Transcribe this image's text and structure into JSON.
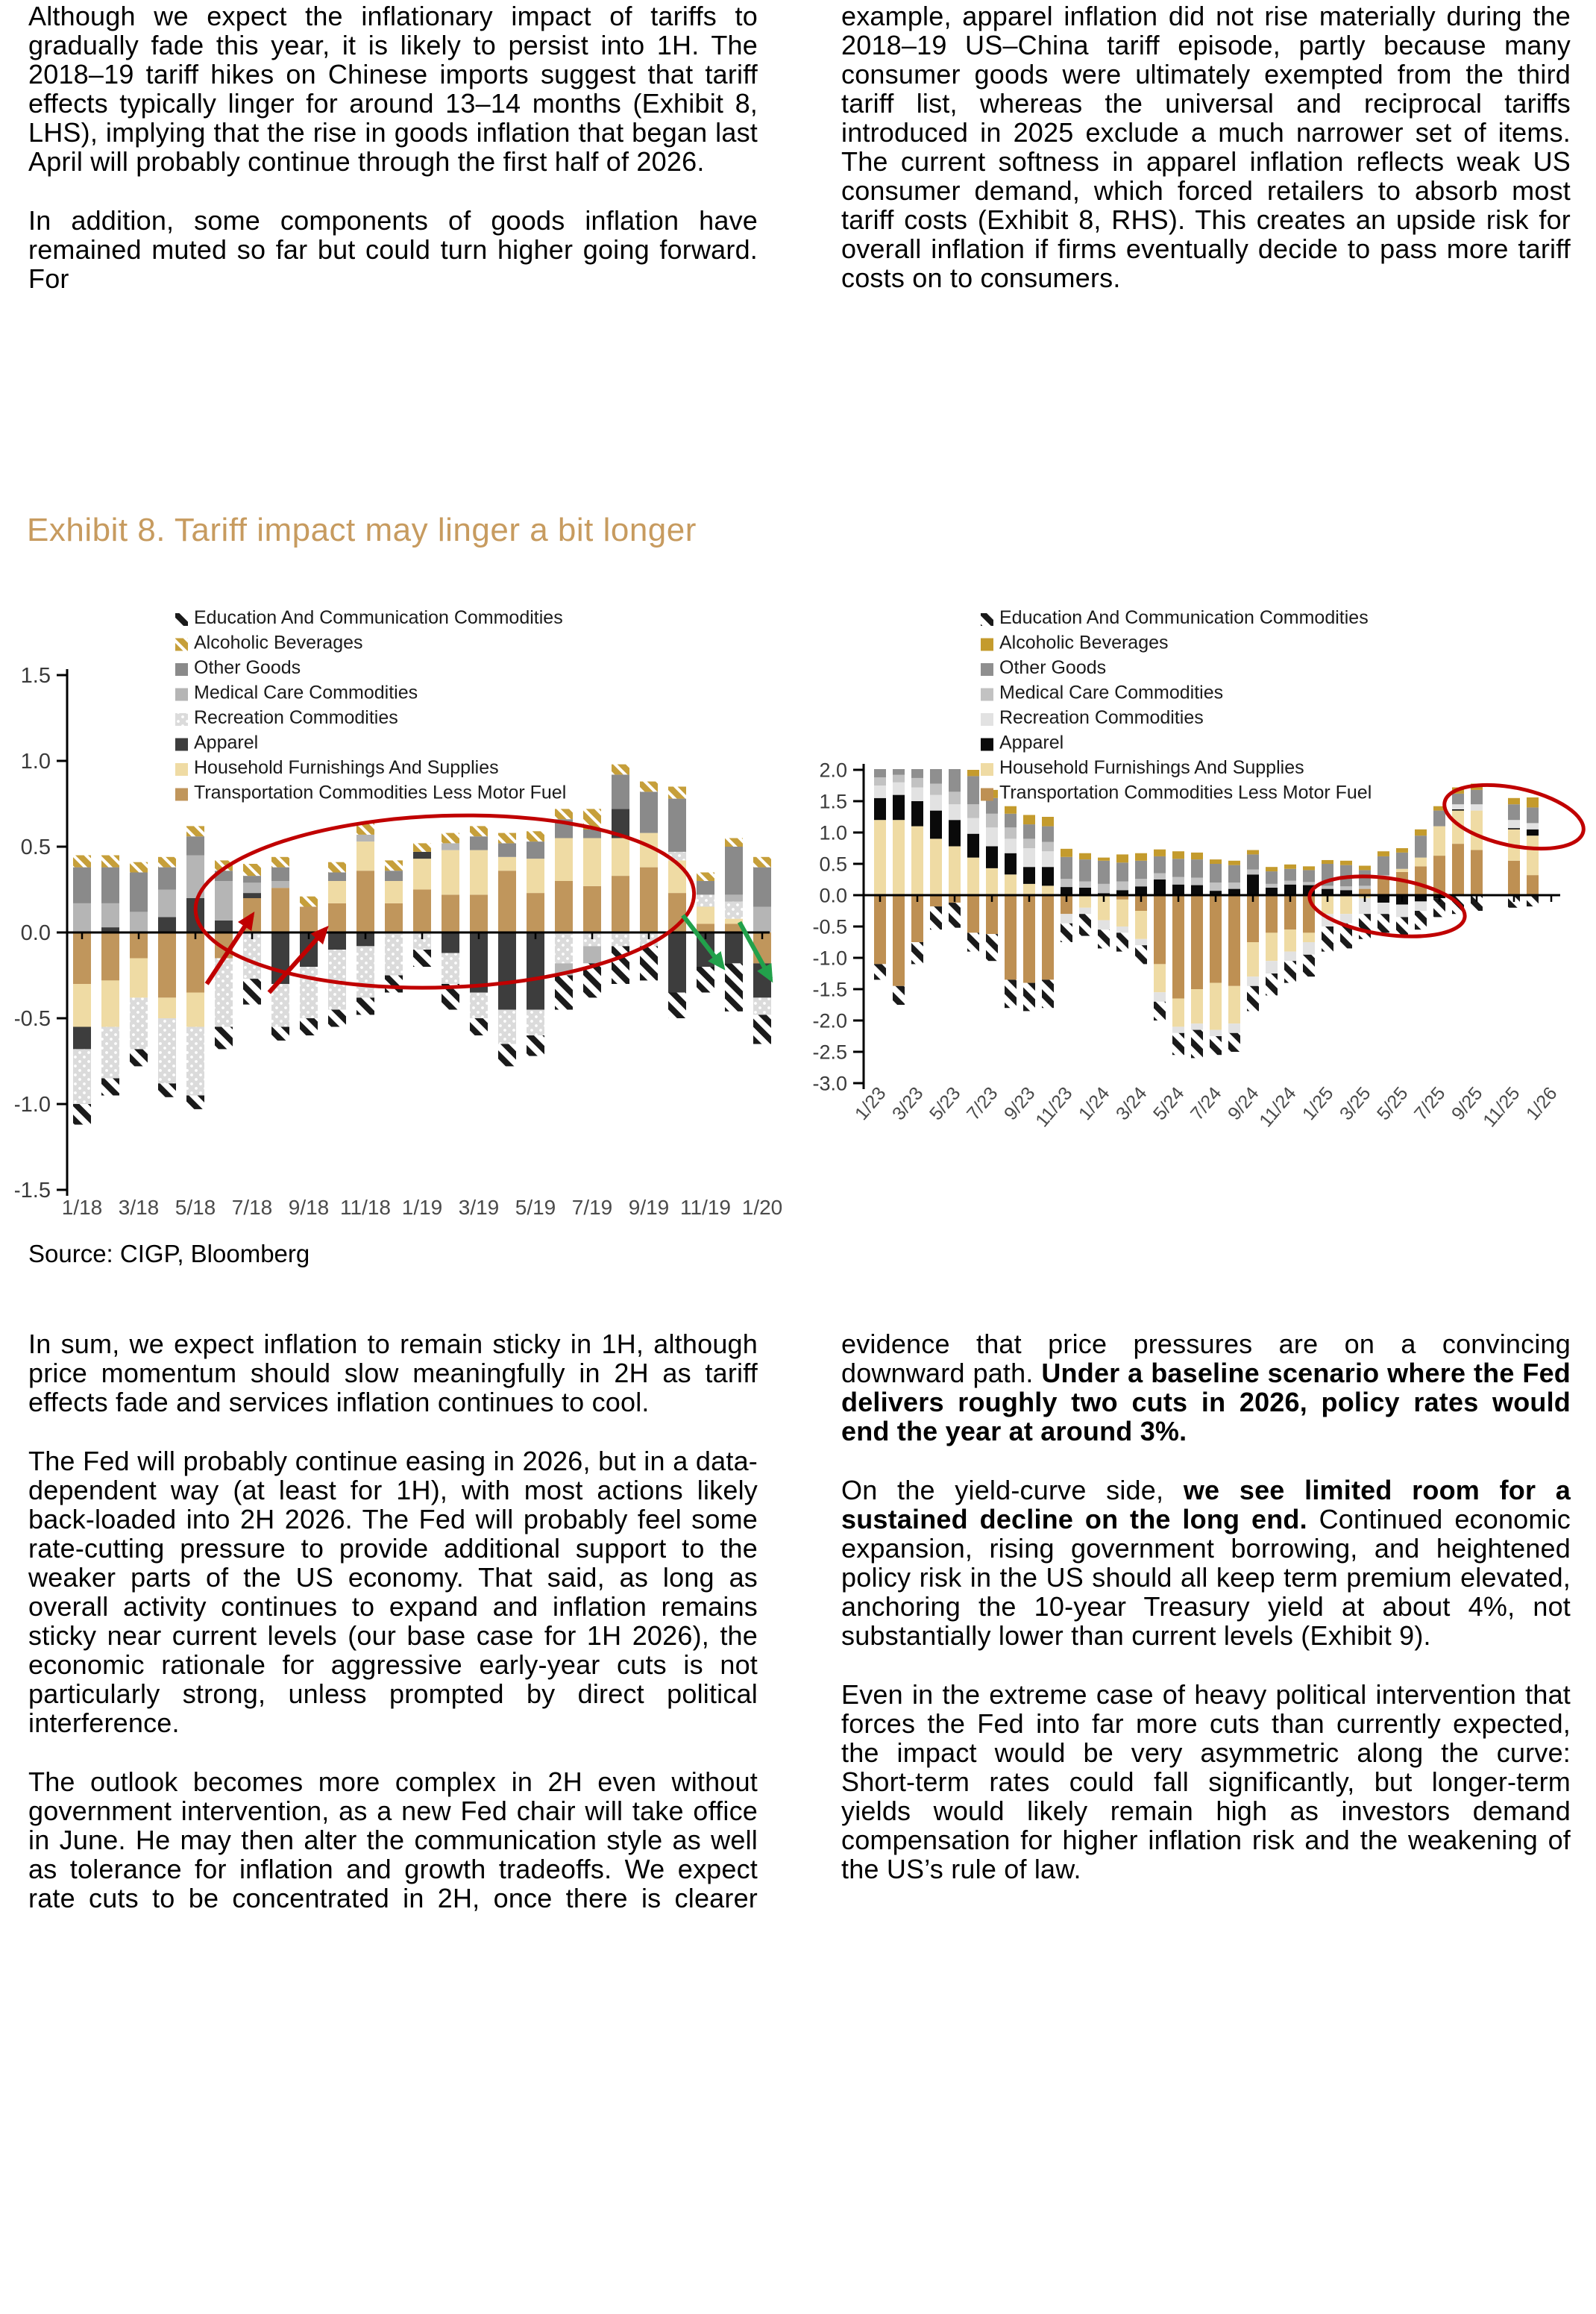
{
  "page": {
    "background": "#FFFFFF",
    "text_color": "#000000",
    "accent_gold": "#C79B5F",
    "annotation_red": "#C00000",
    "annotation_green": "#22A14B"
  },
  "exhibit": {
    "title": "Exhibit 8. Tariff impact may linger a bit longer",
    "source": "Source: CIGP, Bloomberg"
  },
  "columns_top": {
    "left": [
      {
        "cont": false,
        "runs": [
          {
            "t": "Although we expect the inflationary impact of tariffs to gradually fade this year, it is likely to persist into 1H. The 2018–19 tariff hikes on Chinese imports suggest that tariff effects typically linger for around 13–14 months (Exhibit 8, LHS), implying that the rise in goods inflation that began last April will probably continue through the first half of 2026.",
            "b": false
          }
        ]
      },
      {
        "cont": true,
        "runs": [
          {
            "t": "In addition, some components of goods inflation have remained muted so far but could turn higher going forward. For",
            "b": false
          }
        ]
      }
    ],
    "right": [
      {
        "cont": false,
        "runs": [
          {
            "t": "example, apparel inflation did not rise materially during the 2018–19 US–China tariff episode, partly because many consumer goods were ultimately exempted from the third tariff list, whereas the universal and reciprocal tariffs introduced in 2025 exclude a much narrower set of items. The current softness in apparel inflation reflects weak US consumer demand, which forced retailers to absorb most tariff costs (Exhibit 8, RHS). This creates an upside risk for overall inflation if firms eventually decide to pass more tariff costs on to consumers.",
            "b": false
          }
        ]
      }
    ]
  },
  "columns_bottom": {
    "left": [
      {
        "cont": false,
        "runs": [
          {
            "t": "In sum, we expect inflation to remain sticky in 1H, although price momentum should slow meaningfully in 2H as tariff effects fade and services inflation continues to cool.",
            "b": false
          }
        ]
      },
      {
        "cont": false,
        "runs": [
          {
            "t": "The Fed will probably continue easing in 2026, but in a data-dependent way (at least for 1H), with most actions likely back-loaded into 2H 2026. The Fed will probably feel some rate-cutting pressure to provide additional support to the weaker parts of the US economy. That said, as long as overall activity continues to expand and inflation remains sticky near current levels (our base case for 1H 2026), the economic rationale for aggressive early-year cuts is not particularly strong, unless prompted by direct political interference.",
            "b": false
          }
        ]
      },
      {
        "cont": true,
        "runs": [
          {
            "t": "The outlook becomes more complex in 2H even without government intervention, as a new Fed chair will take office in June. He may then alter the communication style as well as tolerance for inflation and growth tradeoffs. We expect rate cuts to be concentrated in 2H, once there is clearer",
            "b": false
          }
        ]
      }
    ],
    "right": [
      {
        "cont": false,
        "runs": [
          {
            "t": "evidence that price pressures are on a convincing downward path. ",
            "b": false
          },
          {
            "t": "Under a baseline scenario where the Fed delivers roughly two cuts in 2026, policy rates would end the year at around 3%.",
            "b": true
          }
        ]
      },
      {
        "cont": false,
        "runs": [
          {
            "t": "On the yield-curve side, ",
            "b": false
          },
          {
            "t": "we see limited room for a sustained decline on the long end.",
            "b": true
          },
          {
            "t": " Continued economic expansion, rising government borrowing, and heightened policy risk in the US should all keep term premium elevated, anchoring the 10-year Treasury yield at about 4%, not substantially lower than current levels (Exhibit 9).",
            "b": false
          }
        ]
      },
      {
        "cont": false,
        "runs": [
          {
            "t": "Even in the extreme case of heavy political intervention that forces the Fed into far more cuts than currently expected, the impact would be very asymmetric along the curve: Short-term rates could fall significantly, but longer-term yields would likely remain high as investors demand compensation for higher inflation risk and the weakening of the US’s rule of law.",
            "b": false
          }
        ]
      }
    ]
  },
  "chart_data": [
    {
      "type": "bar",
      "stacked": true,
      "position": "LHS",
      "title": "",
      "xlabel": "",
      "ylabel": "",
      "ylim": [
        -1.5,
        1.5
      ],
      "x_tick_step": 2,
      "legend_position": "top-inside",
      "yticks": [
        "1.5",
        "1.0",
        "0.5",
        "0.0",
        "-0.5",
        "-1.0",
        "-1.5"
      ],
      "categories": [
        "1/18",
        "2/18",
        "3/18",
        "4/18",
        "5/18",
        "6/18",
        "7/18",
        "8/18",
        "9/18",
        "10/18",
        "11/18",
        "12/18",
        "1/19",
        "2/19",
        "3/19",
        "4/19",
        "5/19",
        "6/19",
        "7/19",
        "8/19",
        "9/19",
        "10/19",
        "11/19",
        "12/19",
        "1/20"
      ],
      "series": [
        {
          "name": "Transportation Commodities Less Motor Fuel",
          "color": "#C0965C",
          "pattern": "solid"
        },
        {
          "name": "Household Furnishings And Supplies",
          "color": "#EFDBA4",
          "pattern": "solid"
        },
        {
          "name": "Apparel",
          "color": "#3D3D3D",
          "pattern": "solid"
        },
        {
          "name": "Recreation Commodities",
          "color": "#DBDBDB",
          "pattern": "dots"
        },
        {
          "name": "Medical Care Commodities",
          "color": "#B5B5B5",
          "pattern": "solid"
        },
        {
          "name": "Other Goods",
          "color": "#8A8A8A",
          "pattern": "solid"
        },
        {
          "name": "Alcoholic Beverages",
          "color": "#C69F3A",
          "pattern": "gold-hatch"
        },
        {
          "name": "Education And Communication Commodities",
          "color": "#1A1A1A",
          "pattern": "hatch"
        }
      ],
      "legend_order": [
        7,
        6,
        5,
        4,
        3,
        2,
        1,
        0
      ],
      "values": [
        [
          -0.3,
          -0.25,
          -0.13,
          -0.32,
          0.17,
          0.21,
          0.07,
          -0.12
        ],
        [
          -0.28,
          -0.27,
          0.03,
          -0.3,
          0.14,
          0.21,
          0.07,
          -0.1
        ],
        [
          -0.15,
          -0.23,
          0,
          -0.3,
          0.12,
          0.23,
          0.06,
          -0.1
        ],
        [
          -0.38,
          -0.12,
          0.09,
          -0.38,
          0.16,
          0.13,
          0.06,
          -0.08
        ],
        [
          -0.35,
          -0.2,
          0.2,
          -0.4,
          0.25,
          0.11,
          0.06,
          -0.08
        ],
        [
          -0.15,
          0,
          0.07,
          -0.4,
          0.23,
          0.06,
          0.06,
          -0.13
        ],
        [
          0.2,
          0,
          0.03,
          -0.27,
          0.06,
          0.04,
          0.07,
          -0.15
        ],
        [
          0.26,
          0,
          -0.3,
          -0.25,
          0.04,
          0.08,
          0.06,
          -0.08
        ],
        [
          0.15,
          0,
          -0.2,
          -0.3,
          0,
          0,
          0.06,
          -0.1
        ],
        [
          0.17,
          0.13,
          -0.1,
          -0.35,
          0,
          0.05,
          0.06,
          -0.1
        ],
        [
          0.36,
          0.17,
          -0.08,
          -0.3,
          0.04,
          0,
          0.07,
          -0.1
        ],
        [
          0.17,
          0.13,
          0,
          -0.25,
          0,
          0.06,
          0.06,
          -0.1
        ],
        [
          0.25,
          0.18,
          0.04,
          -0.1,
          0,
          0,
          0.05,
          -0.1
        ],
        [
          0.22,
          0.26,
          -0.12,
          -0.18,
          0.04,
          0,
          0.06,
          -0.15
        ],
        [
          0.22,
          0.26,
          -0.35,
          -0.15,
          0,
          0.08,
          0.06,
          -0.1
        ],
        [
          0.36,
          0.08,
          -0.45,
          -0.2,
          0,
          0.08,
          0.06,
          -0.13
        ],
        [
          0.23,
          0.2,
          -0.45,
          -0.15,
          0,
          0.1,
          0.06,
          -0.12
        ],
        [
          0.3,
          0.25,
          0,
          -0.18,
          -0.07,
          0.11,
          0.06,
          -0.2
        ],
        [
          0.27,
          0.28,
          0,
          -0.08,
          -0.1,
          0.05,
          0.12,
          -0.2
        ],
        [
          0.33,
          0.22,
          0.17,
          -0.08,
          0,
          0.2,
          0.06,
          -0.22
        ],
        [
          0.38,
          0.2,
          0,
          -0.08,
          0,
          0.24,
          0.06,
          -0.2
        ],
        [
          0.23,
          0.19,
          -0.35,
          0.05,
          0,
          0.31,
          0.07,
          -0.15
        ],
        [
          0.05,
          0.1,
          -0.2,
          0.07,
          0,
          0.08,
          0.05,
          -0.15
        ],
        [
          0.05,
          0.03,
          -0.18,
          0.1,
          0.04,
          0.28,
          0.05,
          -0.28
        ],
        [
          -0.18,
          0,
          -0.2,
          -0.1,
          0.15,
          0.23,
          0.06,
          -0.17
        ]
      ],
      "annotation_color": "#C00000",
      "annotations": {
        "ellipses": [
          {
            "cx": 12.8,
            "cy": 0.18,
            "rx": 8.8,
            "ry": 0.5,
            "rot": -2,
            "color": "#C00000"
          }
        ],
        "arrows": [
          {
            "x1": 4.4,
            "y1": -0.3,
            "x2": 6.0,
            "y2": 0.1,
            "color": "#C00000"
          },
          {
            "x1": 6.6,
            "y1": -0.35,
            "x2": 8.6,
            "y2": 0.02,
            "color": "#C00000"
          },
          {
            "x1": 21.2,
            "y1": 0.1,
            "x2": 22.6,
            "y2": -0.2,
            "color": "#22A14B"
          },
          {
            "x1": 23.2,
            "y1": 0.06,
            "x2": 24.3,
            "y2": -0.27,
            "color": "#22A14B"
          }
        ]
      }
    },
    {
      "type": "bar",
      "stacked": true,
      "position": "RHS",
      "title": "",
      "xlabel": "",
      "ylabel": "",
      "ylim": [
        -3.0,
        2.0
      ],
      "x_tick_step": 2,
      "legend_position": "top-inside",
      "yticks": [
        "2.0",
        "1.5",
        "1.0",
        "0.5",
        "0.0",
        "-0.5",
        "-1.0",
        "-1.5",
        "-2.0",
        "-2.5",
        "-3.0"
      ],
      "categories": [
        "1/23",
        "2/23",
        "3/23",
        "4/23",
        "5/23",
        "6/23",
        "7/23",
        "8/23",
        "9/23",
        "10/23",
        "11/23",
        "12/23",
        "1/24",
        "2/24",
        "3/24",
        "4/24",
        "5/24",
        "6/24",
        "7/24",
        "8/24",
        "9/24",
        "10/24",
        "11/24",
        "12/24",
        "1/25",
        "2/25",
        "3/25",
        "4/25",
        "5/25",
        "6/25",
        "7/25",
        "8/25",
        "9/25",
        "10/25",
        "11/25",
        "12/25",
        "1/26"
      ],
      "series": [
        {
          "name": "Transportation Commodities Less Motor Fuel",
          "color": "#BE9053",
          "pattern": "solid"
        },
        {
          "name": "Household Furnishings And Supplies",
          "color": "#EFDBA4",
          "pattern": "solid"
        },
        {
          "name": "Apparel",
          "color": "#0A0A0A",
          "pattern": "solid"
        },
        {
          "name": "Recreation Commodities",
          "color": "#E2E2E2",
          "pattern": "solid"
        },
        {
          "name": "Medical Care Commodities",
          "color": "#C2C2C2",
          "pattern": "solid"
        },
        {
          "name": "Other Goods",
          "color": "#8F8F8F",
          "pattern": "solid"
        },
        {
          "name": "Alcoholic Beverages",
          "color": "#C49B2D",
          "pattern": "solid"
        },
        {
          "name": "Education And Communication Commodities",
          "color": "#1A1A1A",
          "pattern": "hatch"
        }
      ],
      "legend_order": [
        7,
        6,
        5,
        4,
        3,
        2,
        1,
        0
      ],
      "values": [
        [
          -1.1,
          1.2,
          0.35,
          0.2,
          0.13,
          0.25,
          0,
          -0.25
        ],
        [
          -1.45,
          1.2,
          0.4,
          0.2,
          0.12,
          0.18,
          0,
          -0.3
        ],
        [
          -0.75,
          1.1,
          0.4,
          0.22,
          0.15,
          0.23,
          0,
          -0.35
        ],
        [
          -0.18,
          0.9,
          0.45,
          0.25,
          0.18,
          0.32,
          0,
          -0.37
        ],
        [
          -0.12,
          0.78,
          0.42,
          0.25,
          0.2,
          0.4,
          0,
          -0.4
        ],
        [
          -0.6,
          0.6,
          0.38,
          0.25,
          0.22,
          0.45,
          0.1,
          -0.3
        ],
        [
          -0.62,
          0.43,
          0.35,
          0.3,
          0.22,
          0.25,
          0.13,
          -0.43
        ],
        [
          -1.35,
          0.33,
          0.34,
          0.23,
          0.18,
          0.22,
          0.12,
          -0.45
        ],
        [
          -1.4,
          0.18,
          0.27,
          0.3,
          0.15,
          0.23,
          0.15,
          -0.45
        ],
        [
          -1.35,
          0.15,
          0.3,
          0.25,
          0.15,
          0.25,
          0.15,
          -0.45
        ],
        [
          -0.3,
          0,
          0.13,
          -0.15,
          0.13,
          0.35,
          0.13,
          -0.3
        ],
        [
          0,
          -0.2,
          0.12,
          -0.1,
          0.1,
          0.35,
          0.1,
          -0.35
        ],
        [
          0,
          -0.4,
          0.03,
          -0.15,
          0.15,
          0.37,
          0.05,
          -0.3
        ],
        [
          -0.07,
          -0.43,
          0.08,
          -0.1,
          0.14,
          0.3,
          0.13,
          -0.3
        ],
        [
          -0.25,
          -0.45,
          0.14,
          -0.1,
          0.12,
          0.29,
          0.12,
          -0.3
        ],
        [
          -1.1,
          -0.45,
          0.25,
          -0.15,
          0.1,
          0.27,
          0.11,
          -0.3
        ],
        [
          -1.65,
          -0.45,
          0.17,
          -0.1,
          0.12,
          0.29,
          0.12,
          -0.35
        ],
        [
          -1.5,
          -0.55,
          0.16,
          -0.1,
          0.12,
          0.29,
          0.11,
          -0.45
        ],
        [
          -1.4,
          -0.75,
          0.07,
          -0.1,
          0.13,
          0.3,
          0.07,
          -0.3
        ],
        [
          -1.45,
          -0.6,
          0.1,
          -0.15,
          0.1,
          0.28,
          0.07,
          -0.3
        ],
        [
          -0.75,
          -0.55,
          0.33,
          -0.15,
          0.08,
          0.24,
          0.07,
          -0.4
        ],
        [
          -0.6,
          -0.45,
          0.12,
          -0.2,
          0.06,
          0.2,
          0.07,
          -0.35
        ],
        [
          -0.55,
          -0.35,
          0.17,
          -0.15,
          0.06,
          0.19,
          0.07,
          -0.35
        ],
        [
          -0.6,
          -0.15,
          0.16,
          -0.2,
          0.05,
          0.19,
          0.06,
          -0.35
        ],
        [
          0,
          -0.3,
          0.1,
          -0.2,
          0.05,
          0.35,
          0.06,
          -0.4
        ],
        [
          0,
          -0.3,
          0.08,
          -0.15,
          0.06,
          0.34,
          0.07,
          -0.4
        ],
        [
          0.1,
          -0.05,
          0,
          -0.25,
          0.05,
          0.25,
          0.07,
          -0.4
        ],
        [
          0.28,
          0,
          -0.12,
          -0.18,
          0.04,
          0.3,
          0.08,
          -0.3
        ],
        [
          0.37,
          0.05,
          -0.15,
          -0.2,
          0,
          0.26,
          0.07,
          -0.3
        ],
        [
          0.46,
          0.14,
          -0.1,
          -0.15,
          0,
          0.35,
          0.1,
          -0.3
        ],
        [
          0.63,
          0.47,
          -0.05,
          0,
          0,
          0.25,
          0.07,
          -0.3
        ],
        [
          0.82,
          0.53,
          0.02,
          0.08,
          0,
          0.17,
          0.1,
          -0.3
        ],
        [
          0.72,
          0.63,
          0,
          0.1,
          0,
          0.23,
          0.1,
          -0.25
        ],
        null,
        [
          0.55,
          0.5,
          0.02,
          0.13,
          0,
          0.25,
          0.1,
          -0.2
        ],
        [
          0.32,
          0.63,
          0.1,
          0.1,
          0,
          0.25,
          0.16,
          -0.18
        ],
        null
      ],
      "annotation_color": "#C00000",
      "annotations": {
        "ellipses": [
          {
            "cx": 27.2,
            "cy": -0.18,
            "rx": 4.2,
            "ry": 0.45,
            "rot": 8,
            "color": "#C00000"
          },
          {
            "cx": 34.0,
            "cy": 1.25,
            "rx": 3.8,
            "ry": 0.46,
            "rot": 12,
            "color": "#C00000"
          }
        ],
        "arrows": []
      }
    }
  ]
}
